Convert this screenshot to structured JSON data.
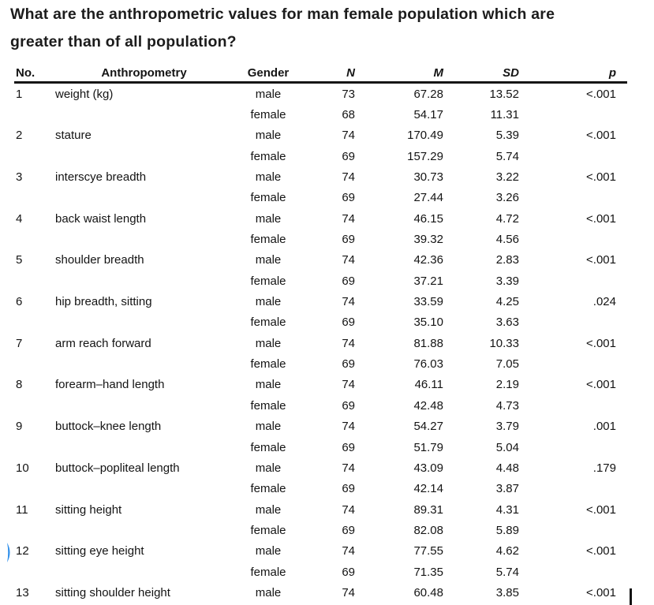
{
  "question": {
    "lines": [
      "What are the anthropometric values for man female population which are",
      "greater than of all population?"
    ]
  },
  "table": {
    "columns": [
      "No.",
      "Anthropometry",
      "Gender",
      "N",
      "M",
      "SD",
      "p"
    ],
    "rows": [
      {
        "no": "1",
        "name": "weight (kg)",
        "gender": "male",
        "n": "73",
        "m": "67.28",
        "sd": "13.52",
        "p": "<.001"
      },
      {
        "no": "",
        "name": "",
        "gender": "female",
        "n": "68",
        "m": "54.17",
        "sd": "11.31",
        "p": ""
      },
      {
        "no": "2",
        "name": "stature",
        "gender": "male",
        "n": "74",
        "m": "170.49",
        "sd": "5.39",
        "p": "<.001"
      },
      {
        "no": "",
        "name": "",
        "gender": "female",
        "n": "69",
        "m": "157.29",
        "sd": "5.74",
        "p": ""
      },
      {
        "no": "3",
        "name": "interscye breadth",
        "gender": "male",
        "n": "74",
        "m": "30.73",
        "sd": "3.22",
        "p": "<.001"
      },
      {
        "no": "",
        "name": "",
        "gender": "female",
        "n": "69",
        "m": "27.44",
        "sd": "3.26",
        "p": ""
      },
      {
        "no": "4",
        "name": "back waist length",
        "gender": "male",
        "n": "74",
        "m": "46.15",
        "sd": "4.72",
        "p": "<.001"
      },
      {
        "no": "",
        "name": "",
        "gender": "female",
        "n": "69",
        "m": "39.32",
        "sd": "4.56",
        "p": ""
      },
      {
        "no": "5",
        "name": "shoulder breadth",
        "gender": "male",
        "n": "74",
        "m": "42.36",
        "sd": "2.83",
        "p": "<.001"
      },
      {
        "no": "",
        "name": "",
        "gender": "female",
        "n": "69",
        "m": "37.21",
        "sd": "3.39",
        "p": ""
      },
      {
        "no": "6",
        "name": "hip breadth, sitting",
        "gender": "male",
        "n": "74",
        "m": "33.59",
        "sd": "4.25",
        "p": ".024"
      },
      {
        "no": "",
        "name": "",
        "gender": "female",
        "n": "69",
        "m": "35.10",
        "sd": "3.63",
        "p": ""
      },
      {
        "no": "7",
        "name": "arm reach forward",
        "gender": "male",
        "n": "74",
        "m": "81.88",
        "sd": "10.33",
        "p": "<.001"
      },
      {
        "no": "",
        "name": "",
        "gender": "female",
        "n": "69",
        "m": "76.03",
        "sd": "7.05",
        "p": ""
      },
      {
        "no": "8",
        "name": "forearm–hand length",
        "gender": "male",
        "n": "74",
        "m": "46.11",
        "sd": "2.19",
        "p": "<.001"
      },
      {
        "no": "",
        "name": "",
        "gender": "female",
        "n": "69",
        "m": "42.48",
        "sd": "4.73",
        "p": ""
      },
      {
        "no": "9",
        "name": "buttock–knee length",
        "gender": "male",
        "n": "74",
        "m": "54.27",
        "sd": "3.79",
        "p": ".001"
      },
      {
        "no": "",
        "name": "",
        "gender": "female",
        "n": "69",
        "m": "51.79",
        "sd": "5.04",
        "p": ""
      },
      {
        "no": "10",
        "name": "buttock–popliteal length",
        "gender": "male",
        "n": "74",
        "m": "43.09",
        "sd": "4.48",
        "p": ".179"
      },
      {
        "no": "",
        "name": "",
        "gender": "female",
        "n": "69",
        "m": "42.14",
        "sd": "3.87",
        "p": ""
      },
      {
        "no": "11",
        "name": "sitting height",
        "gender": "male",
        "n": "74",
        "m": "89.31",
        "sd": "4.31",
        "p": "<.001"
      },
      {
        "no": "",
        "name": "",
        "gender": "female",
        "n": "69",
        "m": "82.08",
        "sd": "5.89",
        "p": ""
      },
      {
        "no": "12",
        "name": "sitting eye height",
        "gender": "male",
        "n": "74",
        "m": "77.55",
        "sd": "4.62",
        "p": "<.001",
        "marker": true
      },
      {
        "no": "",
        "name": "",
        "gender": "female",
        "n": "69",
        "m": "71.35",
        "sd": "5.74",
        "p": ""
      },
      {
        "no": "13",
        "name": "sitting shoulder height",
        "gender": "male",
        "n": "74",
        "m": "60.48",
        "sd": "3.85",
        "p": "<.001"
      }
    ]
  },
  "annotations": {
    "marker_color": "#2f8fea",
    "cursor_color": "#141414"
  }
}
